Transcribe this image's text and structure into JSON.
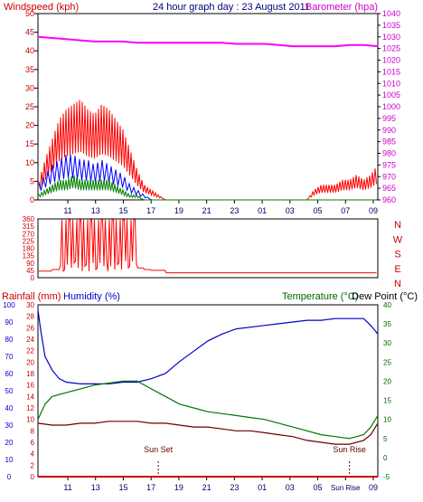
{
  "header": {
    "left_label": "Windspeed (kph)",
    "title": "24 hour graph day : 23 August 2011",
    "right_label": "Barometer (hpa)"
  },
  "bottom_header": {
    "rainfall_label": "Rainfall (mm)",
    "humidity_label": "Humidity (%)",
    "temperature_label": "Temperature (°C)",
    "dewpoint_label": "Dew Point (°C)"
  },
  "colors": {
    "wind_gust": "#ff0000",
    "wind_avg": "#0000ff",
    "wind_low": "#008000",
    "barometer": "#ff00ff",
    "direction": "#ff0000",
    "humidity": "#0000cc",
    "temperature": "#007700",
    "dewpoint": "#660000",
    "rain": "#cc0000",
    "axis_red": "#cc0000",
    "axis_green": "#006600",
    "axis_blue": "#0000cc"
  },
  "chart_data": [
    {
      "type": "line",
      "name": "wind-barometer",
      "x_tick_labels": [
        "11",
        "13",
        "15",
        "17",
        "19",
        "21",
        "23",
        "01",
        "03",
        "05",
        "07",
        "09"
      ],
      "left_axis": {
        "label": "Windspeed (kph)",
        "ylim": [
          0,
          50
        ],
        "ticks": [
          0,
          5,
          10,
          15,
          20,
          25,
          30,
          35,
          40,
          45,
          50
        ]
      },
      "right_axis": {
        "label": "Barometer (hpa)",
        "ylim": [
          960,
          1040
        ],
        "ticks": [
          960,
          965,
          970,
          975,
          980,
          985,
          990,
          995,
          1000,
          1005,
          1010,
          1015,
          1020,
          1025,
          1030,
          1035,
          1040
        ]
      },
      "series": [
        {
          "key": "gust",
          "hours": [
            0,
            0.5,
            1,
            1.5,
            2,
            2.5,
            3,
            3.5,
            4,
            4.5,
            5,
            5.5,
            6,
            6.5,
            7,
            7.5,
            8,
            8.5,
            9,
            9.5,
            10,
            11,
            12,
            13,
            14,
            15,
            16,
            17,
            18,
            19,
            19.5,
            20,
            20.5,
            21,
            21.5,
            22,
            22.5,
            23,
            23.5,
            24
          ],
          "values": [
            3,
            8,
            12,
            16,
            18,
            19,
            20,
            18,
            17,
            19,
            18,
            16,
            14,
            10,
            6,
            3,
            2,
            1,
            0,
            0,
            0,
            0,
            0,
            0,
            0,
            0,
            0,
            0,
            0,
            0,
            2,
            3,
            3,
            3,
            4,
            4,
            5,
            4,
            5,
            7
          ]
        },
        {
          "key": "avg",
          "hours": [
            0,
            0.5,
            1,
            1.5,
            2,
            2.5,
            3,
            3.5,
            4,
            4.5,
            5,
            5.5,
            6,
            6.5,
            7,
            7.5,
            8,
            9,
            10,
            24
          ],
          "values": [
            3,
            5,
            7,
            8,
            9,
            9,
            8,
            8,
            7,
            8,
            7,
            6,
            5,
            3,
            2,
            1,
            0,
            0,
            0,
            0
          ]
        },
        {
          "key": "low",
          "hours": [
            0,
            0.5,
            1,
            1.5,
            2,
            2.5,
            3,
            3.5,
            4,
            4.5,
            5,
            5.5,
            6,
            6.5,
            7,
            7.5,
            8,
            9,
            24
          ],
          "values": [
            1,
            2,
            3,
            4,
            4,
            5,
            4,
            4,
            4,
            4,
            4,
            3,
            2,
            1,
            1,
            0,
            0,
            0,
            0
          ]
        },
        {
          "key": "barometer",
          "hours": [
            0,
            1,
            2,
            3,
            4,
            5,
            6,
            7,
            8,
            9,
            10,
            11,
            12,
            13,
            14,
            15,
            16,
            17,
            18,
            19,
            20,
            21,
            22,
            23,
            24
          ],
          "values": [
            1030,
            1029.5,
            1029,
            1028.5,
            1028,
            1028,
            1028,
            1027.5,
            1027.5,
            1027.5,
            1027.5,
            1027.5,
            1027.5,
            1027.5,
            1027,
            1027,
            1027,
            1026.5,
            1026,
            1026,
            1026,
            1026,
            1026.5,
            1026.5,
            1026
          ]
        }
      ]
    },
    {
      "type": "line",
      "name": "wind-direction",
      "left_axis": {
        "ticks": [
          0,
          45,
          90,
          135,
          180,
          225,
          270,
          315,
          360
        ],
        "ylim": [
          0,
          360
        ]
      },
      "right_axis_labels": [
        "N",
        "W",
        "S",
        "E",
        "N"
      ],
      "series": [
        {
          "key": "direction",
          "hours": [
            0,
            1,
            1.5,
            2,
            2.5,
            3,
            3.5,
            4,
            4.5,
            5,
            5.5,
            6,
            6.5,
            7,
            7.5,
            8,
            9,
            10,
            23.5,
            24
          ],
          "values": [
            40,
            50,
            60,
            350,
            340,
            355,
            330,
            345,
            320,
            350,
            300,
            355,
            340,
            60,
            50,
            45,
            30,
            30,
            30,
            80
          ]
        }
      ]
    },
    {
      "type": "line",
      "name": "humidity-temperature",
      "x_tick_labels": [
        "11",
        "13",
        "15",
        "17",
        "19",
        "21",
        "23",
        "01",
        "03",
        "05",
        "Sun Rise",
        "09"
      ],
      "left_axes": {
        "rainfall": {
          "label": "Rainfall (mm)",
          "ylim": [
            0,
            30
          ],
          "ticks": [
            0,
            2,
            4,
            6,
            8,
            10,
            12,
            14,
            16,
            18,
            20,
            22,
            24,
            26,
            28,
            30
          ]
        },
        "humidity": {
          "label": "Humidity (%)",
          "ylim": [
            0,
            100
          ],
          "ticks": [
            0,
            10,
            20,
            30,
            40,
            50,
            60,
            70,
            80,
            90,
            100
          ]
        }
      },
      "right_axis": {
        "label": "Temperature (°C)",
        "ylim": [
          -5,
          40
        ],
        "ticks": [
          -5,
          0,
          5,
          10,
          15,
          20,
          25,
          30,
          35,
          40
        ]
      },
      "annotations": [
        {
          "text": "Sun Set",
          "hour": 8.5
        },
        {
          "text": "Sun Rise",
          "hour": 22.0
        }
      ],
      "series": [
        {
          "key": "humidity",
          "hours": [
            0,
            0.2,
            0.5,
            1,
            1.5,
            2,
            3,
            4,
            5,
            6,
            7,
            8,
            9,
            10,
            11,
            12,
            13,
            14,
            15,
            16,
            17,
            18,
            19,
            20,
            21,
            22,
            23,
            23.5,
            24
          ],
          "values": [
            97,
            85,
            70,
            62,
            57,
            55,
            54,
            54,
            54,
            55,
            55,
            57,
            60,
            67,
            73,
            79,
            83,
            86,
            87,
            88,
            89,
            90,
            91,
            91,
            92,
            92,
            92,
            88,
            83
          ]
        },
        {
          "key": "temperature",
          "hours": [
            0,
            0.5,
            1,
            2,
            3,
            4,
            5,
            6,
            7,
            8,
            9,
            10,
            11,
            12,
            13,
            14,
            15,
            16,
            17,
            18,
            19,
            20,
            21,
            22,
            23,
            23.5,
            24
          ],
          "values": [
            10,
            14,
            16,
            17,
            18,
            19,
            19.5,
            20,
            20,
            18,
            16,
            14,
            13,
            12,
            11.5,
            11,
            10.5,
            10,
            9,
            8,
            7,
            6,
            5.5,
            5,
            6,
            8,
            11
          ]
        },
        {
          "key": "dewpoint",
          "hours": [
            0,
            1,
            2,
            3,
            4,
            5,
            6,
            7,
            8,
            9,
            10,
            11,
            12,
            13,
            14,
            15,
            16,
            17,
            18,
            19,
            20,
            21,
            22,
            23,
            23.5,
            24
          ],
          "values": [
            9,
            8.5,
            8.5,
            9,
            9,
            9.5,
            9.5,
            9.5,
            9,
            9,
            8.5,
            8,
            8,
            7.5,
            7,
            7,
            6.5,
            6,
            5.5,
            4.5,
            4,
            3.5,
            3.5,
            4.5,
            6,
            9
          ]
        },
        {
          "key": "rainfall",
          "hours": [
            0,
            24
          ],
          "values": [
            0,
            0
          ]
        }
      ]
    }
  ]
}
